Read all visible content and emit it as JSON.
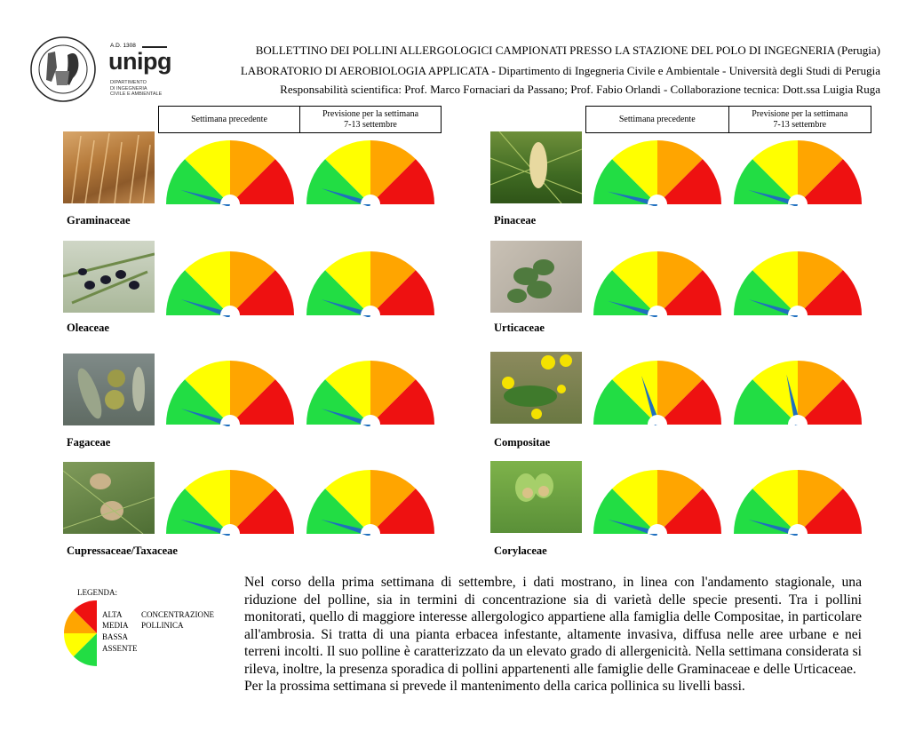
{
  "header": {
    "logo": {
      "seal_text": "STUDIUM GENERALE CIVITATIS PERUSII · A.D. MCCCVIII",
      "ad": "A.D. 1308",
      "brand": "unipg",
      "dept": [
        "DIPARTIMENTO",
        "DI INGEGNERIA",
        "CIVILE E AMBIENTALE"
      ]
    },
    "line1": "BOLLETTINO DEI POLLINI ALLERGOLOGICI CAMPIONATI PRESSO LA STAZIONE DEL POLO DI INGEGNERIA (Perugia)",
    "line2": "LABORATORIO DI AEROBIOLOGIA APPLICATA - Dipartimento di Ingegneria Civile e Ambientale - Università degli Studi di Perugia",
    "line3": "Responsabilità scientifica: Prof. Marco Fornaciari da Passano; Prof. Fabio Orlandi - Collaborazione tecnica: Dott.ssa Luigia Ruga"
  },
  "columns": {
    "previous": "Settimana precedente",
    "forecast_line1": "Previsione per la settimana",
    "forecast_line2": "7-13 settembre"
  },
  "gauge_colors": {
    "assente": "#22dd44",
    "bassa": "#ffff00",
    "media": "#ffa500",
    "alta": "#ee1111",
    "needle": "#1f6fbf"
  },
  "plants": [
    {
      "name": "Graminaceae",
      "previous_level": 0.09,
      "forecast_level": 0.1
    },
    {
      "name": "Pinaceae",
      "previous_level": 0.08,
      "forecast_level": 0.09
    },
    {
      "name": "Oleaceae",
      "previous_level": 0.1,
      "forecast_level": 0.1
    },
    {
      "name": "Urticaceae",
      "previous_level": 0.09,
      "forecast_level": 0.1
    },
    {
      "name": "Fagaceae",
      "previous_level": 0.1,
      "forecast_level": 0.1
    },
    {
      "name": "Compositae",
      "previous_level": 0.4,
      "forecast_level": 0.43
    },
    {
      "name": "Cupressaceae/Taxaceae",
      "previous_level": 0.09,
      "forecast_level": 0.09
    },
    {
      "name": "Corylaceae",
      "previous_level": 0.09,
      "forecast_level": 0.09
    }
  ],
  "legend": {
    "title": "LEGENDA:",
    "alta": "ALTA",
    "media": "MEDIA",
    "bassa": "BASSA",
    "assente": "ASSENTE",
    "concentrazione": "CONCENTRAZIONE",
    "pollinica": "POLLINICA"
  },
  "body": {
    "paragraph1": "Nel corso della prima settimana di settembre, i dati mostrano, in linea con l'andamento stagionale, una riduzione del polline, sia in termini di concentrazione sia di varietà delle specie presenti. Tra i pollini monitorati, quello di maggiore interesse allergologico appartiene alla famiglia delle Compositae, in particolare all'ambrosia. Si tratta di una pianta erbacea infestante, altamente invasiva, diffusa nelle aree urbane e nei terreni incolti. Il suo polline è caratterizzato da un elevato grado di allergenicità. Nella settimana considerata si rileva, inoltre, la presenza sporadica di pollini appartenenti alle famiglie delle Graminaceae e delle Urticaceae.",
    "paragraph2": "Per la prossima settimana si prevede il mantenimento della carica pollinica su livelli bassi."
  }
}
